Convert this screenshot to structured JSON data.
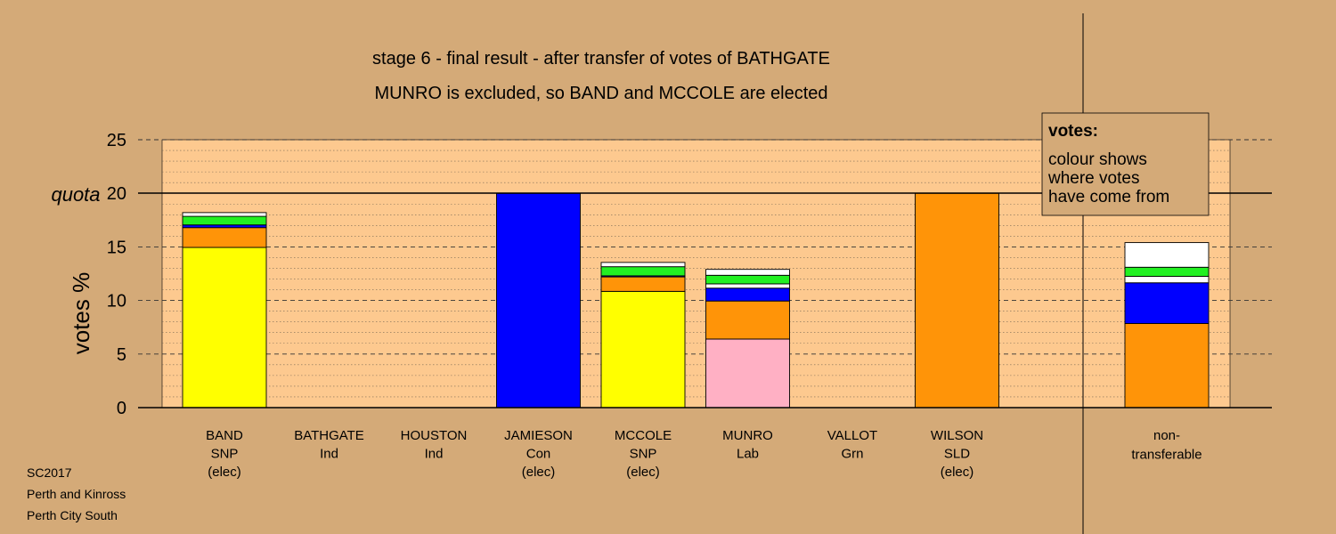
{
  "chart_data": {
    "type": "bar",
    "stacked": true,
    "title": "stage 6 - final result - after transfer of votes of BATHGATE",
    "subtitle": "MUNRO is excluded, so BAND and MCCOLE are elected",
    "ylabel": "votes %",
    "ylim": [
      0,
      25
    ],
    "yticks": [
      0,
      5,
      10,
      15,
      20,
      25
    ],
    "quota": {
      "label": "quota",
      "value": 20
    },
    "colors": {
      "background": "#d4aa78",
      "plot_area": "#fdc98f",
      "SNP": "#ffff00",
      "SLD": "#ff9408",
      "Con": "#0000ff",
      "Lab": "#ffb0c4",
      "Grn": "#22f022",
      "Ind": "#ffffff"
    },
    "candidates": [
      {
        "name": "BAND",
        "party": "SNP",
        "status": "(elec)",
        "segments": [
          {
            "party": "SNP",
            "value": 14.95
          },
          {
            "party": "SLD",
            "value": 1.85
          },
          {
            "party": "Con",
            "value": 0.25
          },
          {
            "party": "Grn",
            "value": 0.8
          },
          {
            "party": "Ind",
            "value": 0.35
          }
        ]
      },
      {
        "name": "BATHGATE",
        "party": "Ind",
        "status": "",
        "segments": []
      },
      {
        "name": "HOUSTON",
        "party": "Ind",
        "status": "",
        "segments": []
      },
      {
        "name": "JAMIESON",
        "party": "Con",
        "status": "(elec)",
        "segments": [
          {
            "party": "Con",
            "value": 20.0
          }
        ]
      },
      {
        "name": "MCCOLE",
        "party": "SNP",
        "status": "(elec)",
        "segments": [
          {
            "party": "SNP",
            "value": 10.85
          },
          {
            "party": "SLD",
            "value": 1.35
          },
          {
            "party": "Con",
            "value": 0.1
          },
          {
            "party": "Grn",
            "value": 0.85
          },
          {
            "party": "Ind",
            "value": 0.4
          }
        ]
      },
      {
        "name": "MUNRO",
        "party": "Lab",
        "status": "",
        "segments": [
          {
            "party": "Lab",
            "value": 6.4
          },
          {
            "party": "SLD",
            "value": 3.55
          },
          {
            "party": "Con",
            "value": 1.2
          },
          {
            "party": "Ind",
            "value": 0.4
          },
          {
            "party": "Grn",
            "value": 0.8
          },
          {
            "party": "Ind",
            "value": 0.55
          }
        ]
      },
      {
        "name": "VALLOT",
        "party": "Grn",
        "status": "",
        "segments": []
      },
      {
        "name": "WILSON",
        "party": "SLD",
        "status": "(elec)",
        "segments": [
          {
            "party": "SLD",
            "value": 20.0
          }
        ]
      }
    ],
    "non_transferable": {
      "label_lines": [
        "non-",
        "transferable"
      ],
      "segments": [
        {
          "party": "SLD",
          "value": 7.85
        },
        {
          "party": "Con",
          "value": 3.8
        },
        {
          "party": "Ind",
          "value": 0.6
        },
        {
          "party": "Grn",
          "value": 0.85
        },
        {
          "party": "Ind",
          "value": 2.3
        }
      ]
    },
    "legend": {
      "title": "votes:",
      "lines": [
        "colour shows",
        "where votes",
        "have come from"
      ]
    }
  },
  "footer": {
    "lines": [
      "SC2017",
      "Perth and Kinross",
      "Perth City South"
    ]
  }
}
